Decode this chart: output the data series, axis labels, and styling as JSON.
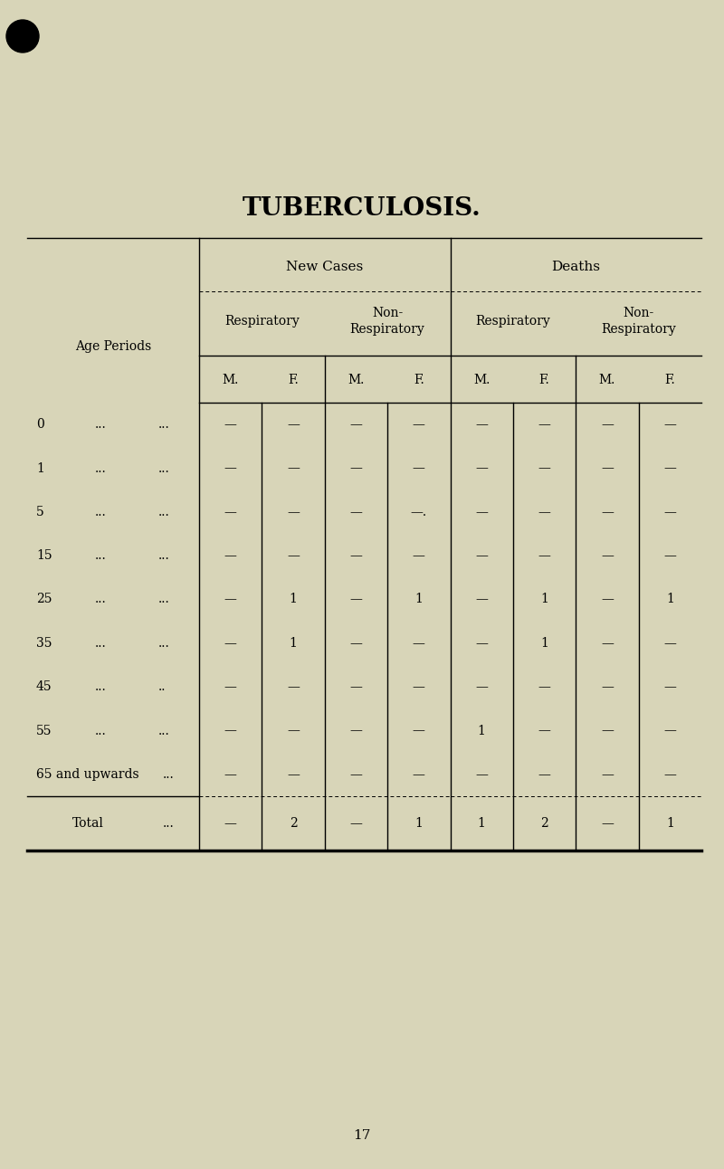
{
  "title": "TUBERCULOSIS.",
  "background_color": "#d8d5b8",
  "title_fontsize": 20,
  "age_periods": [
    "0",
    "1",
    "5",
    "15",
    "25",
    "35",
    "45",
    "55",
    "65 and upwards"
  ],
  "age_dots1": [
    "...",
    "...",
    "...",
    "...",
    "...",
    "...",
    "...",
    "...",
    "..."
  ],
  "age_dots2": [
    "...",
    "...",
    "...",
    "...",
    "...",
    "...",
    "..",
    "...",
    "..."
  ],
  "table_data": [
    [
      "—",
      "—",
      "—",
      "—",
      "—",
      "—",
      "—",
      "—"
    ],
    [
      "—",
      "—",
      "—",
      "—",
      "—",
      "—",
      "—",
      "—"
    ],
    [
      "—",
      "—",
      "—",
      "—.",
      "—",
      "—",
      "—",
      "—"
    ],
    [
      "—",
      "—",
      "—",
      "—",
      "—",
      "—",
      "—",
      "—"
    ],
    [
      "—",
      "1",
      "—",
      "1",
      "—",
      "1",
      "—",
      "1"
    ],
    [
      "—",
      "1",
      "—",
      "—",
      "—",
      "1",
      "—",
      "—"
    ],
    [
      "—",
      "—",
      "—",
      "—",
      "—",
      "—",
      "—",
      "—"
    ],
    [
      "—",
      "—",
      "—",
      "—",
      "1",
      "—",
      "—",
      "—"
    ],
    [
      "—",
      "—",
      "—",
      "—",
      "—",
      "—",
      "—",
      "—"
    ]
  ],
  "totals": [
    "—",
    "2",
    "—",
    "1",
    "1",
    "2",
    "—",
    "1"
  ],
  "page_number": "17",
  "col_headers_mf": [
    "M.",
    "F.",
    "M.",
    "F.",
    "M.",
    "F.",
    "M.",
    "F."
  ]
}
